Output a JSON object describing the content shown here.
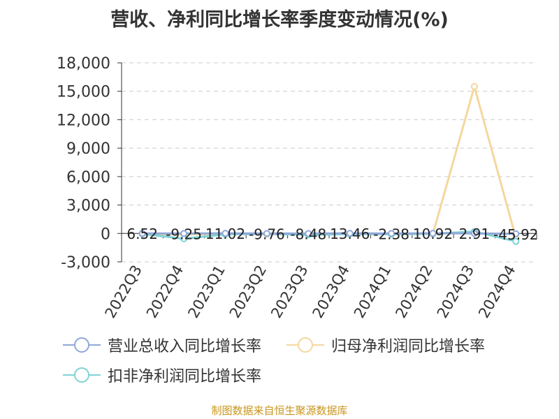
{
  "title": "营收、净利同比增长率季度变动情况(%)",
  "source": "制图数据来自恒生聚源数据库",
  "chart_data": {
    "type": "line",
    "title": "营收、净利同比增长率季度变动情况(%)",
    "xlabel": "",
    "ylabel": "",
    "categories": [
      "2022Q3",
      "2022Q4",
      "2023Q1",
      "2023Q2",
      "2023Q3",
      "2023Q4",
      "2024Q1",
      "2024Q2",
      "2024Q3",
      "2024Q4"
    ],
    "ylim": [
      -3000,
      18000
    ],
    "yticks": [
      -3000,
      0,
      3000,
      6000,
      9000,
      12000,
      15000,
      18000
    ],
    "ytick_labels": [
      "-3,000",
      "0",
      "3,000",
      "6,000",
      "9,000",
      "12,000",
      "15,000",
      "18,000"
    ],
    "grid": true,
    "legend_position": "bottom",
    "series": [
      {
        "name": "营业总收入同比增长率",
        "color": "#8fa8d8",
        "values": [
          6.52,
          -9.25,
          11.02,
          -9.76,
          -8.48,
          13.46,
          -2.38,
          10.92,
          2.91,
          -45.92
        ],
        "labels": [
          "6.52",
          "-9.25",
          "11.02",
          "-9.76",
          "-8.48",
          "13.46",
          "-2.38",
          "10.92",
          "2.91",
          "-45.92"
        ]
      },
      {
        "name": "归母净利润同比增长率",
        "color": "#f5d79e",
        "values": [
          -60,
          -120,
          -40,
          -90,
          -80,
          -30,
          -70,
          -60,
          15500,
          -480
        ]
      },
      {
        "name": "扣非净利润同比增长率",
        "color": "#7fd3d6",
        "values": [
          -50,
          -560,
          -100,
          -30,
          -150,
          -60,
          -80,
          -30,
          200,
          -840
        ]
      }
    ]
  }
}
